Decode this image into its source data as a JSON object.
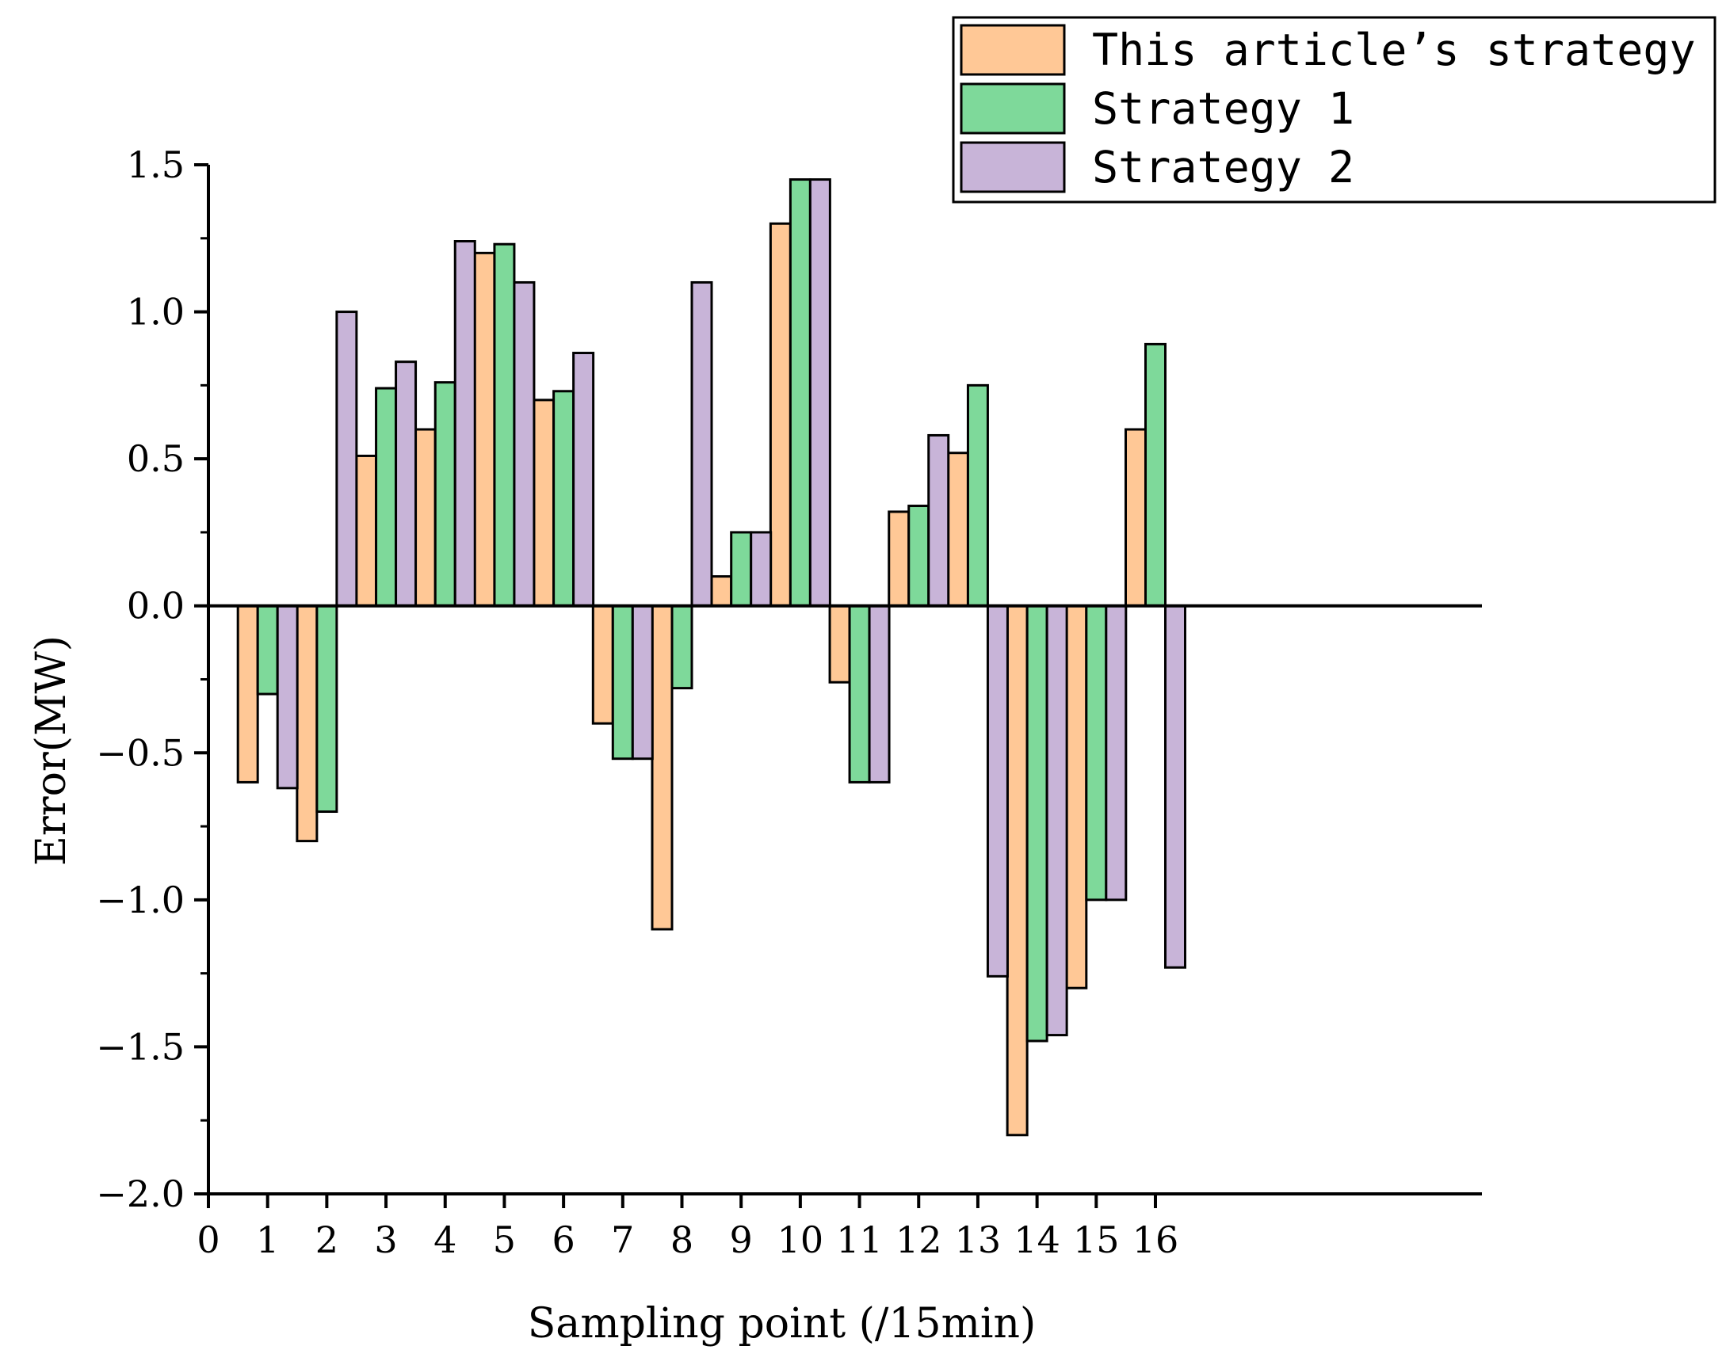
{
  "chart_data": {
    "type": "bar",
    "xlabel": "Sampling point (/15min)",
    "ylabel": "Error(MW)",
    "ylim": [
      -2.0,
      1.5
    ],
    "xlim": [
      0,
      16.5
    ],
    "x_ticks": [
      "0",
      "1",
      "2",
      "3",
      "4",
      "5",
      "6",
      "7",
      "8",
      "9",
      "10",
      "11",
      "12",
      "13",
      "14",
      "15",
      "16"
    ],
    "y_ticks": [
      "-2.0",
      "-1.5",
      "-1.0",
      "-0.5",
      "0.0",
      "0.5",
      "1.0",
      "1.5"
    ],
    "categories": [
      "1",
      "2",
      "3",
      "4",
      "5",
      "6",
      "7",
      "8",
      "9",
      "10",
      "11",
      "12",
      "13",
      "14",
      "15",
      "16"
    ],
    "series": [
      {
        "name": "This article's strategy",
        "color": "#ffc896",
        "values": [
          -0.6,
          -0.8,
          0.51,
          0.6,
          1.2,
          0.7,
          -0.4,
          -1.1,
          0.1,
          1.3,
          -0.26,
          0.32,
          0.52,
          -1.8,
          -1.3,
          0.6
        ]
      },
      {
        "name": "Strategy 1",
        "color": "#7ed99a",
        "values": [
          -0.3,
          -0.7,
          0.74,
          0.76,
          1.23,
          0.73,
          -0.52,
          -0.28,
          0.25,
          1.45,
          -0.6,
          0.34,
          0.75,
          -1.48,
          -1.0,
          0.89
        ]
      },
      {
        "name": "Strategy 2",
        "color": "#c8b4d8",
        "values": [
          -0.62,
          1.0,
          0.83,
          1.24,
          1.1,
          0.86,
          -0.52,
          1.1,
          0.25,
          1.45,
          -0.6,
          0.58,
          -1.26,
          -1.46,
          -1.0,
          -1.23
        ]
      }
    ],
    "legend_position": "top-right",
    "grid": false
  }
}
